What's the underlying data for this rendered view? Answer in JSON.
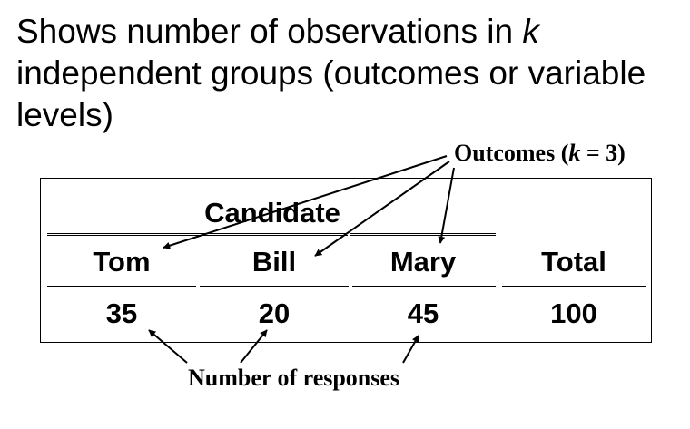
{
  "heading": {
    "text_before_k": "Shows number of observations in ",
    "k": "k",
    "text_after_k": " independent groups (outcomes or variable levels)"
  },
  "outcomes_label": {
    "before": "Outcomes (",
    "k": "k",
    "after": " = 3)"
  },
  "table": {
    "group_header": "Candidate",
    "columns": [
      "Tom",
      "Bill",
      "Mary"
    ],
    "total_header": "Total",
    "values": [
      "35",
      "20",
      "45"
    ],
    "total_value": "100"
  },
  "responses_label": "Number of responses"
}
